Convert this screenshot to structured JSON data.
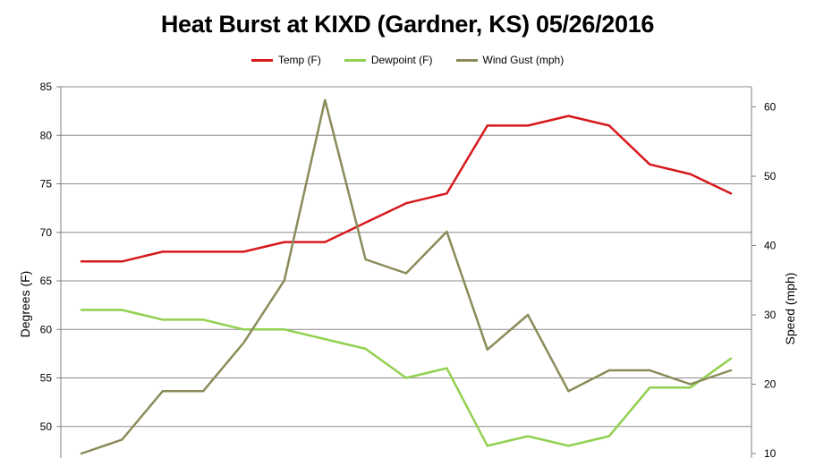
{
  "chart_data": {
    "type": "line",
    "title": "Heat Burst at KIXD (Gardner, KS) 05/26/2016",
    "ylabel": "Degrees (F)",
    "y2label": "Speed (mph)",
    "ylim": [
      45,
      85
    ],
    "y_ticks": [
      50,
      55,
      60,
      65,
      70,
      75,
      80,
      85
    ],
    "y2lim": [
      8.4,
      64
    ],
    "y2_ticks": [
      10,
      20,
      30,
      40,
      50,
      60
    ],
    "grid": true,
    "legend": "top-center",
    "series": [
      {
        "name": "Temp (F)",
        "axis": "left",
        "color": "#d7191c",
        "values": [
          67,
          67,
          68,
          68,
          68,
          69,
          69,
          71,
          73,
          74,
          81,
          81,
          82,
          81,
          77,
          76,
          74
        ]
      },
      {
        "name": "Dewpoint (F)",
        "axis": "left",
        "color": "#92d050",
        "values": [
          62,
          62,
          61,
          61,
          60,
          60,
          59,
          58,
          55,
          56,
          48,
          49,
          48,
          49,
          54,
          54,
          57
        ]
      },
      {
        "name": "Wind Gust (mph)",
        "axis": "right",
        "color": "#8b8b5a",
        "values": [
          10,
          12,
          19,
          19,
          26,
          35,
          61,
          38,
          36,
          42,
          25,
          30,
          19,
          22,
          22,
          20,
          22
        ]
      }
    ]
  }
}
